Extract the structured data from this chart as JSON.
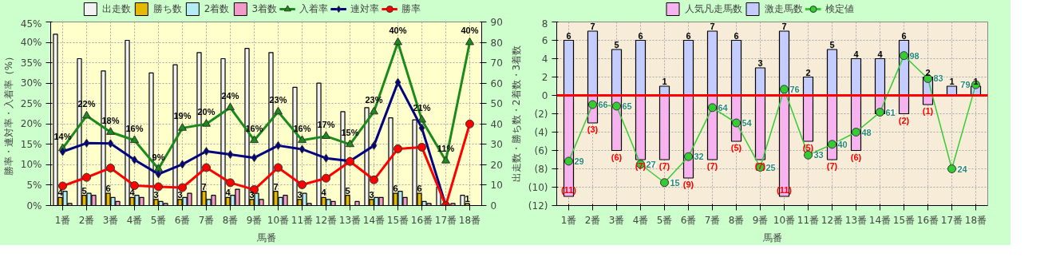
{
  "chart_data": [
    {
      "type": "bar",
      "xlabel": "馬番",
      "ylabel": "勝率・連対率・入着率（%）",
      "legend": "top",
      "grid": true,
      "categories": [
        "1番",
        "2番",
        "3番",
        "4番",
        "5番",
        "6番",
        "7番",
        "8番",
        "9番",
        "10番",
        "11番",
        "12番",
        "13番",
        "14番",
        "15番",
        "16番",
        "17番",
        "18番"
      ],
      "ylim": [
        0,
        45
      ],
      "yticks": [
        {
          "value": 0,
          "label": "0%"
        },
        {
          "value": 5,
          "label": "5%"
        },
        {
          "value": 10,
          "label": "10%"
        },
        {
          "value": 15,
          "label": "15%"
        },
        {
          "value": 20,
          "label": "20%"
        },
        {
          "value": 25,
          "label": "25%"
        },
        {
          "value": 30,
          "label": "30%"
        },
        {
          "value": 35,
          "label": "35%"
        },
        {
          "value": 40,
          "label": "40%"
        },
        {
          "value": 45,
          "label": "45%"
        }
      ],
      "y2lim": [
        0,
        90
      ],
      "y2ticks": [
        0,
        10,
        20,
        30,
        40,
        50,
        60,
        70,
        80,
        90
      ],
      "series": [
        {
          "name": "出走数",
          "type": "bar",
          "axis": "y2",
          "color": "#f2f2f2",
          "values": [
            84,
            72,
            66,
            81,
            65,
            69,
            75,
            72,
            77,
            75,
            58,
            60,
            46,
            48,
            43,
            42,
            9,
            5
          ]
        },
        {
          "name": "勝ち数",
          "type": "bar",
          "axis": "y2",
          "color": "#e6b800",
          "values": [
            4,
            5,
            6,
            4,
            3,
            3,
            7,
            4,
            3,
            7,
            3,
            4,
            5,
            3,
            6,
            6,
            0,
            1
          ],
          "value_labels": [
            "4",
            "5",
            "6",
            "4",
            "3",
            "3",
            "7",
            "4",
            "3",
            "7",
            "3",
            "4",
            "5",
            "3",
            "6",
            "6",
            null,
            "1"
          ]
        },
        {
          "name": "2着数",
          "type": "bar",
          "axis": "y2",
          "color": "#b3ecf5",
          "values": [
            7,
            6,
            4,
            5,
            2,
            4,
            3,
            5,
            6,
            4,
            6,
            3,
            0,
            4,
            7,
            2,
            0,
            0
          ]
        },
        {
          "name": "3着数",
          "type": "bar",
          "axis": "y2",
          "color": "#f29ac8",
          "values": [
            1,
            5,
            2,
            4,
            1,
            6,
            5,
            8,
            3,
            5,
            1,
            2,
            2,
            4,
            4,
            1,
            1,
            0
          ]
        },
        {
          "name": "入着率",
          "type": "line",
          "marker": "triangle",
          "color": "#1a8a1a",
          "values": [
            14,
            22,
            18,
            16,
            9,
            19,
            20,
            24,
            16,
            23,
            16,
            17,
            15,
            23,
            40,
            21,
            11,
            40
          ],
          "value_labels": [
            "14%",
            "22%",
            "18%",
            "16%",
            "9%",
            "19%",
            "20%",
            "24%",
            "16%",
            "23%",
            "16%",
            "17%",
            "15%",
            "23%",
            "40%",
            "21%",
            "11%",
            "40%"
          ]
        },
        {
          "name": "連対率",
          "type": "line",
          "marker": "diamond",
          "color": "#000080",
          "values": [
            13.2,
            15.3,
            15.2,
            11.2,
            7.7,
            10.1,
            13.3,
            12.5,
            11.7,
            14.7,
            13.8,
            11.6,
            10.9,
            14.7,
            30.2,
            19.0,
            0,
            null
          ]
        },
        {
          "name": "勝率",
          "type": "line",
          "marker": "circle",
          "color": "#ff0000",
          "values": [
            4.8,
            6.9,
            9.2,
            4.9,
            4.6,
            4.4,
            9.3,
            5.6,
            3.9,
            9.3,
            5.1,
            6.7,
            10.8,
            6.3,
            13.9,
            14.3,
            0,
            20
          ]
        }
      ]
    },
    {
      "type": "bar",
      "stacked": true,
      "xlabel": "馬番",
      "ylabel": "出走数・勝ち数・2着数・3着数",
      "legend": "top",
      "grid": true,
      "categories": [
        "1番",
        "2番",
        "3番",
        "4番",
        "5番",
        "6番",
        "7番",
        "8番",
        "9番",
        "10番",
        "11番",
        "12番",
        "13番",
        "14番",
        "15番",
        "16番",
        "17番",
        "18番"
      ],
      "ylim": [
        -12,
        8
      ],
      "yticks": [
        8,
        6,
        4,
        2,
        0,
        {
          "value": -2,
          "label": "(2)"
        },
        {
          "value": -4,
          "label": "(4)"
        },
        {
          "value": -6,
          "label": "(6)"
        },
        {
          "value": -8,
          "label": "(8)"
        },
        {
          "value": -10,
          "label": "(10)"
        },
        {
          "value": -12,
          "label": "(12)"
        }
      ],
      "y2lim": [
        0,
        120
      ],
      "ref_lines": [
        {
          "axis": "y",
          "value": 0,
          "color": "#ff0000"
        }
      ],
      "series": [
        {
          "name": "人気凡走馬数",
          "color": "#f7b3f0",
          "values": [
            -11,
            -3,
            -6,
            -7,
            -7,
            -9,
            -7,
            -5,
            -7,
            -11,
            -5,
            -7,
            -6,
            -2,
            -2,
            -1,
            0,
            0
          ],
          "value_labels": [
            "(11)",
            "(3)",
            "(6)",
            "(7)",
            "(7)",
            "(9)",
            "(7)",
            "(5)",
            "(7)",
            "(11)",
            "(5)",
            "(7)",
            "(6)",
            null,
            "(2)",
            "(1)",
            null,
            null
          ]
        },
        {
          "name": "激走馬数",
          "color": "#c5ccff",
          "values": [
            6,
            7,
            5,
            6,
            1,
            6,
            7,
            6,
            3,
            7,
            2,
            5,
            4,
            4,
            6,
            2,
            1,
            1
          ],
          "value_labels": [
            "6",
            "7",
            "5",
            "6",
            "1",
            "6",
            "7",
            "6",
            "3",
            "7",
            "2",
            "5",
            "4",
            "4",
            "6",
            "2",
            "1",
            "1"
          ]
        },
        {
          "name": "検定値",
          "type": "line",
          "axis": "y2",
          "marker": "circle",
          "color": "#33cc33",
          "values": [
            29,
            66,
            65,
            27,
            15,
            32,
            64,
            54,
            25,
            76,
            33,
            40,
            48,
            61,
            98,
            83,
            24,
            79
          ],
          "value_labels": [
            "29",
            "66",
            "65",
            "27",
            "15",
            "32",
            "64",
            "54",
            "25",
            "76",
            "33",
            "40",
            "48",
            "61",
            "98",
            "83",
            "24",
            "79"
          ]
        }
      ]
    }
  ]
}
